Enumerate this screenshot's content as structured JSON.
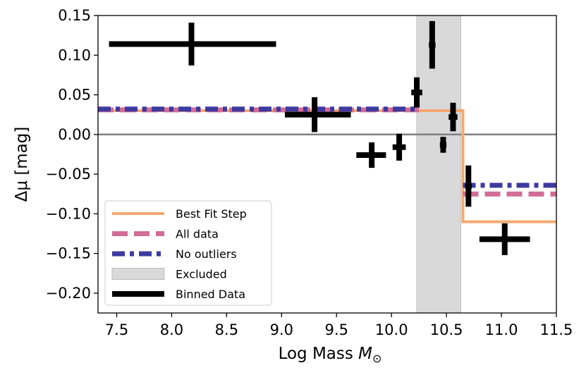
{
  "chart_data": {
    "type": "scatter",
    "title": "",
    "xlabel": "Log Mass",
    "xlabel_symbol": "M",
    "xlabel_subscript": "⊙",
    "ylabel": "Δμ [mag]",
    "xlim": [
      7.33,
      11.5
    ],
    "ylim": [
      -0.225,
      0.15
    ],
    "xticks": [
      7.5,
      8.0,
      8.5,
      9.0,
      9.5,
      10.0,
      10.5,
      11.0,
      11.5
    ],
    "xtick_labels": [
      "7.5",
      "8.0",
      "8.5",
      "9.0",
      "9.5",
      "10.0",
      "10.5",
      "11.0",
      "11.5"
    ],
    "yticks": [
      0.15,
      0.1,
      0.05,
      0.0,
      -0.05,
      -0.1,
      -0.15,
      -0.2
    ],
    "ytick_labels": [
      "0.15",
      "0.10",
      "0.05",
      "0.00",
      "−0.05",
      "−0.10",
      "−0.15",
      "−0.20"
    ],
    "zero_line": 0.0,
    "excluded_region": {
      "x0": 10.23,
      "x1": 10.63
    },
    "series": [
      {
        "name": "Best Fit Step",
        "kind": "step",
        "color": "#f4a870",
        "x": [
          7.33,
          10.65,
          10.65,
          11.5
        ],
        "y": [
          0.03,
          0.03,
          -0.11,
          -0.11
        ]
      },
      {
        "name": "All data",
        "kind": "dashed",
        "color": "#d26c94",
        "segments": [
          {
            "x": [
              7.33,
              10.25
            ],
            "y": [
              0.031,
              0.031
            ]
          },
          {
            "x": [
              10.65,
              11.5
            ],
            "y": [
              -0.075,
              -0.075
            ]
          }
        ]
      },
      {
        "name": "No outliers",
        "kind": "dashdot",
        "color": "#3d3aa0",
        "segments": [
          {
            "x": [
              7.33,
              10.25
            ],
            "y": [
              0.032,
              0.032
            ]
          },
          {
            "x": [
              10.65,
              11.5
            ],
            "y": [
              -0.064,
              -0.064
            ]
          }
        ]
      }
    ],
    "binned_data": {
      "name": "Binned Data",
      "color": "#000000",
      "points": [
        {
          "x": 8.18,
          "y": 0.114,
          "xerr_lo": 0.75,
          "xerr_hi": 0.77,
          "yerr": 0.027
        },
        {
          "x": 9.3,
          "y": 0.025,
          "xerr_lo": 0.27,
          "xerr_hi": 0.33,
          "yerr": 0.022
        },
        {
          "x": 9.82,
          "y": -0.026,
          "xerr_lo": 0.14,
          "xerr_hi": 0.13,
          "yerr": 0.016
        },
        {
          "x": 10.07,
          "y": -0.016,
          "xerr_lo": 0.06,
          "xerr_hi": 0.06,
          "yerr": 0.017
        },
        {
          "x": 10.23,
          "y": 0.053,
          "xerr_lo": 0.05,
          "xerr_hi": 0.05,
          "yerr": 0.019
        },
        {
          "x": 10.37,
          "y": 0.113,
          "xerr_lo": 0.03,
          "xerr_hi": 0.03,
          "yerr": 0.03
        },
        {
          "x": 10.47,
          "y": -0.013,
          "xerr_lo": 0.03,
          "xerr_hi": 0.03,
          "yerr": 0.01
        },
        {
          "x": 10.56,
          "y": 0.022,
          "xerr_lo": 0.04,
          "xerr_hi": 0.04,
          "yerr": 0.018
        },
        {
          "x": 10.7,
          "y": -0.065,
          "xerr_lo": 0.03,
          "xerr_hi": 0.03,
          "yerr": 0.026
        },
        {
          "x": 11.03,
          "y": -0.132,
          "xerr_lo": 0.23,
          "xerr_hi": 0.23,
          "yerr": 0.02
        }
      ]
    },
    "legend": {
      "placement": "bottom-left",
      "entries": [
        {
          "label": "Best Fit Step",
          "style": "solid",
          "color": "#f4a870"
        },
        {
          "label": "All data",
          "style": "dashed",
          "color": "#d26c94"
        },
        {
          "label": "No outliers",
          "style": "dashdot",
          "color": "#3d3aa0"
        },
        {
          "label": "Excluded",
          "style": "patch",
          "color": "#d9d9d9"
        },
        {
          "label": "Binned Data",
          "style": "solid-thick",
          "color": "#000000"
        }
      ]
    }
  }
}
